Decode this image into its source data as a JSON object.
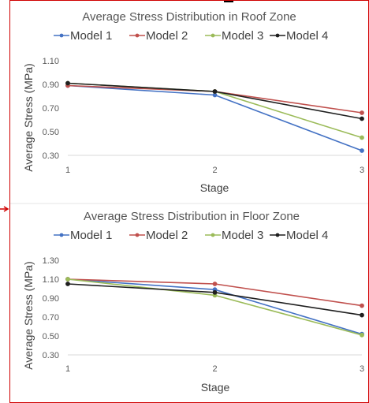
{
  "chart_data": [
    {
      "type": "line",
      "title": "Average Stress Distribution in Roof Zone",
      "xlabel": "Stage",
      "ylabel": "Average Stress (MPa)",
      "categories": [
        "1",
        "2",
        "3"
      ],
      "ylim": [
        0.3,
        1.1
      ],
      "yticks": [
        "0.30",
        "0.50",
        "0.70",
        "0.90",
        "1.10"
      ],
      "grid": false,
      "legend_position": "top",
      "series": [
        {
          "name": "Model 1",
          "values": [
            0.89,
            0.81,
            0.34
          ]
        },
        {
          "name": "Model 2",
          "values": [
            0.89,
            0.84,
            0.66
          ]
        },
        {
          "name": "Model 3",
          "values": [
            0.91,
            0.84,
            0.45
          ]
        },
        {
          "name": "Model 4",
          "values": [
            0.91,
            0.84,
            0.61
          ]
        }
      ]
    },
    {
      "type": "line",
      "title": "Average Stress Distribution in Floor Zone",
      "xlabel": "Stage",
      "ylabel": "Average Stress (MPa)",
      "categories": [
        "1",
        "2",
        "3"
      ],
      "ylim": [
        0.3,
        1.3
      ],
      "yticks": [
        "0.30",
        "0.50",
        "0.70",
        "0.90",
        "1.10",
        "1.30"
      ],
      "grid": false,
      "legend_position": "top",
      "series": [
        {
          "name": "Model 1",
          "values": [
            1.1,
            0.99,
            0.52
          ]
        },
        {
          "name": "Model 2",
          "values": [
            1.1,
            1.05,
            0.82
          ]
        },
        {
          "name": "Model 3",
          "values": [
            1.1,
            0.93,
            0.51
          ]
        },
        {
          "name": "Model 4",
          "values": [
            1.05,
            0.96,
            0.72
          ]
        }
      ]
    }
  ],
  "colors": {
    "series": [
      "#4472c4",
      "#c0504d",
      "#9bbb59",
      "#1f1f1f"
    ],
    "frame": "#d00000"
  }
}
